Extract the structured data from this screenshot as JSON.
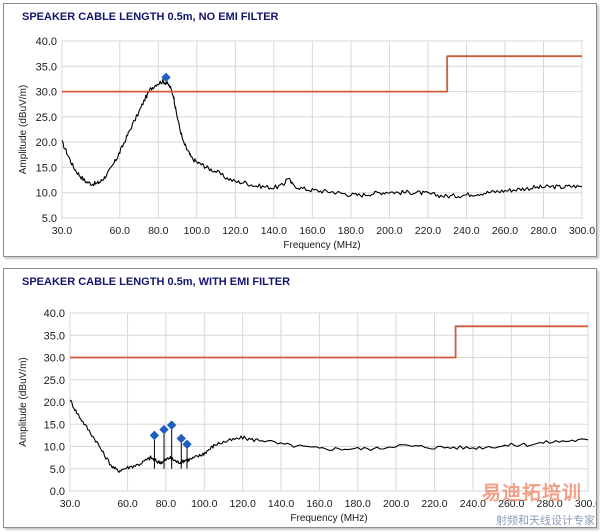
{
  "chart_data": [
    {
      "type": "line",
      "title": "SPEAKER CABLE LENGTH 0.5m, NO EMI FILTER",
      "xlabel": "Frequency (MHz)",
      "ylabel": "Amplitude (dBuV/m)",
      "xlim": [
        30,
        300
      ],
      "ylim": [
        5,
        40
      ],
      "xticks": [
        "30.0",
        "60.0",
        "80.0",
        "100.0",
        "120.0",
        "140.0",
        "160.0",
        "180.0",
        "200.0",
        "220.0",
        "240.0",
        "260.0",
        "280.0",
        "300.0"
      ],
      "yticks": [
        "5.0",
        "10.0",
        "15.0",
        "20.0",
        "25.0",
        "30.0",
        "35.0",
        "40.0"
      ],
      "grid": true,
      "series": [
        {
          "role": "measured",
          "color": "#000000",
          "x": [
            30,
            33,
            36,
            39,
            42,
            45,
            48,
            50,
            52,
            55,
            58,
            60,
            63,
            66,
            70,
            73,
            76,
            79,
            82,
            84,
            86,
            88,
            89,
            91,
            93,
            95,
            97,
            100,
            103,
            106,
            110,
            115,
            120,
            125,
            130,
            135,
            140,
            145,
            147,
            150,
            155,
            160,
            165,
            170,
            175,
            180,
            185,
            190,
            195,
            200,
            205,
            210,
            215,
            220,
            225,
            230,
            235,
            240,
            245,
            250,
            255,
            260,
            265,
            270,
            275,
            280,
            285,
            290,
            295,
            300
          ],
          "y": [
            20,
            17.5,
            15,
            13.5,
            12.3,
            11.8,
            11.8,
            12.2,
            13,
            14.5,
            16.5,
            18,
            20.5,
            23,
            26,
            28.5,
            30.5,
            31.5,
            32,
            31.8,
            31,
            29,
            26.5,
            23,
            20,
            18.5,
            17,
            16,
            15.5,
            14.8,
            14.2,
            13,
            12.2,
            12,
            11.4,
            11.2,
            11,
            11.5,
            13,
            11.5,
            10.8,
            10.5,
            10.3,
            10.2,
            9.9,
            9.6,
            9.5,
            9.8,
            10,
            10.2,
            10,
            10.1,
            10,
            9.8,
            9.5,
            9.3,
            9.4,
            9.6,
            9.8,
            10,
            10.2,
            10.4,
            10.6,
            10.8,
            11,
            11.1,
            11.2,
            11.1,
            11.3,
            11.2
          ]
        },
        {
          "role": "limit",
          "color": "#d05a3c",
          "x": [
            30,
            230,
            230,
            300
          ],
          "y": [
            30,
            30,
            37,
            37
          ]
        }
      ],
      "markers": [
        {
          "x": 84,
          "y": 32.8,
          "color": "#1f5fbf"
        }
      ]
    },
    {
      "type": "line",
      "title": "SPEAKER CABLE LENGTH 0.5m, WITH EMI FILTER",
      "xlabel": "Frequency (MHz)",
      "ylabel": "Amplitude (dBuV/m)",
      "xlim": [
        30,
        300
      ],
      "ylim": [
        0,
        40
      ],
      "xticks": [
        "30.0",
        "60.0",
        "80.0",
        "100.0",
        "120.0",
        "140.0",
        "160.0",
        "180.0",
        "200.0",
        "220.0",
        "240.0",
        "260.0",
        "280.0",
        "300.0"
      ],
      "yticks": [
        "0.0",
        "5.0",
        "10.0",
        "15.0",
        "20.0",
        "25.0",
        "30.0",
        "35.0",
        "40.0"
      ],
      "grid": true,
      "series": [
        {
          "role": "measured",
          "color": "#000000",
          "x": [
            30,
            33,
            36,
            40,
            44,
            48,
            52,
            55,
            58,
            62,
            66,
            70,
            72,
            74,
            76,
            78,
            80,
            82,
            84,
            86,
            88,
            90,
            92,
            95,
            98,
            100,
            103,
            106,
            110,
            115,
            120,
            125,
            130,
            140,
            150,
            160,
            170,
            180,
            190,
            200,
            210,
            220,
            230,
            240,
            250,
            260,
            270,
            280,
            290,
            300
          ],
          "y": [
            20.5,
            18,
            16,
            13.5,
            11,
            8,
            5.5,
            4.5,
            5,
            5.5,
            6,
            7,
            7.5,
            7,
            6.5,
            6.5,
            7,
            7.5,
            7,
            6.5,
            6.5,
            7,
            7,
            7.5,
            8,
            8.5,
            9.5,
            10.5,
            11,
            11.5,
            12,
            11.5,
            11.5,
            10.5,
            10,
            9.5,
            9.5,
            9.5,
            9.5,
            10.3,
            10,
            9.8,
            9.8,
            9.7,
            10,
            10.3,
            10.5,
            11,
            11.3,
            11.5
          ]
        },
        {
          "role": "limit",
          "color": "#d05a3c",
          "x": [
            30,
            231,
            231,
            300
          ],
          "y": [
            30,
            30,
            37,
            37
          ]
        }
      ],
      "markers": [
        {
          "x": 74,
          "y": 12.5,
          "color": "#1f5fbf"
        },
        {
          "x": 79,
          "y": 13.8,
          "color": "#1f5fbf"
        },
        {
          "x": 83,
          "y": 14.8,
          "color": "#1f5fbf"
        },
        {
          "x": 88,
          "y": 11.8,
          "color": "#1f5fbf"
        },
        {
          "x": 91,
          "y": 10.5,
          "color": "#1f5fbf"
        }
      ]
    }
  ],
  "watermark": {
    "main": "易迪拓培训",
    "sub": "射频和天线设计专家"
  }
}
